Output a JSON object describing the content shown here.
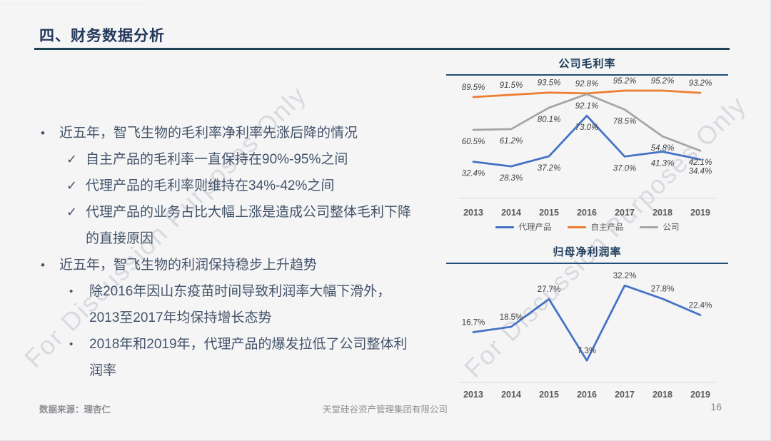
{
  "slide": {
    "title": "四、财务数据分析",
    "watermark": "For Discussion Purposes Only",
    "footer": {
      "source": "数据来源：理杏仁",
      "company": "天堂硅谷资产管理集团有限公司",
      "page": "16"
    }
  },
  "bullets": [
    {
      "level": 1,
      "marker": "•",
      "lines": [
        "近五年，智飞生物的毛利率净利率先涨后降的情况"
      ]
    },
    {
      "level": 2,
      "marker": "✓",
      "lines": [
        "自主产品的毛利率一直保持在90%-95%之间"
      ]
    },
    {
      "level": 2,
      "marker": "✓",
      "lines": [
        "代理产品的毛利率则维持在34%-42%之间"
      ]
    },
    {
      "level": 2,
      "marker": "✓",
      "lines": [
        "代理产品的业务占比大幅上涨是造成公司整体毛利下降",
        "的直接原因"
      ]
    },
    {
      "level": 1,
      "marker": "•",
      "lines": [
        "近五年，智飞生物的利润保持稳步上升趋势"
      ]
    },
    {
      "level": 2,
      "marker": "•",
      "lines": [
        "除2016年因山东疫苗时间导致利润率大幅下滑外，",
        "2013至2017年均保持增长态势"
      ]
    },
    {
      "level": 2,
      "marker": "•",
      "lines": [
        "2018年和2019年，代理产品的爆发拉低了公司整体利",
        "润率"
      ]
    }
  ],
  "chart_data": [
    {
      "type": "line",
      "title": "公司毛利率",
      "categories": [
        "2013",
        "2014",
        "2015",
        "2016",
        "2017",
        "2018",
        "2019"
      ],
      "series": [
        {
          "name": "代理产品",
          "color": "#4472C4",
          "values": [
            32.4,
            28.3,
            37.2,
            73.0,
            37.0,
            41.3,
            34.4
          ],
          "label_position": "below"
        },
        {
          "name": "自主产品",
          "color": "#ED7D31",
          "values": [
            89.5,
            91.5,
            93.5,
            92.8,
            95.2,
            95.2,
            93.2
          ],
          "label_position": "above"
        },
        {
          "name": "公司",
          "color": "#A5A5A5",
          "values": [
            60.5,
            61.2,
            80.1,
            92.1,
            78.5,
            54.8,
            42.1
          ],
          "label_position": "below"
        }
      ],
      "ylim": [
        0,
        105
      ],
      "labels_italic": true,
      "grid": false,
      "legend_position": "bottom"
    },
    {
      "type": "line",
      "title": "归母净利润率",
      "categories": [
        "2013",
        "2014",
        "2015",
        "2016",
        "2017",
        "2018",
        "2019"
      ],
      "series": [
        {
          "name": "归母净利润率",
          "color": "#4472C4",
          "values": [
            16.7,
            18.5,
            27.7,
            7.3,
            32.2,
            27.8,
            22.4
          ],
          "label_position": "above"
        }
      ],
      "ylim": [
        0,
        36
      ],
      "labels_italic": false,
      "grid": false,
      "legend_position": "none"
    }
  ]
}
